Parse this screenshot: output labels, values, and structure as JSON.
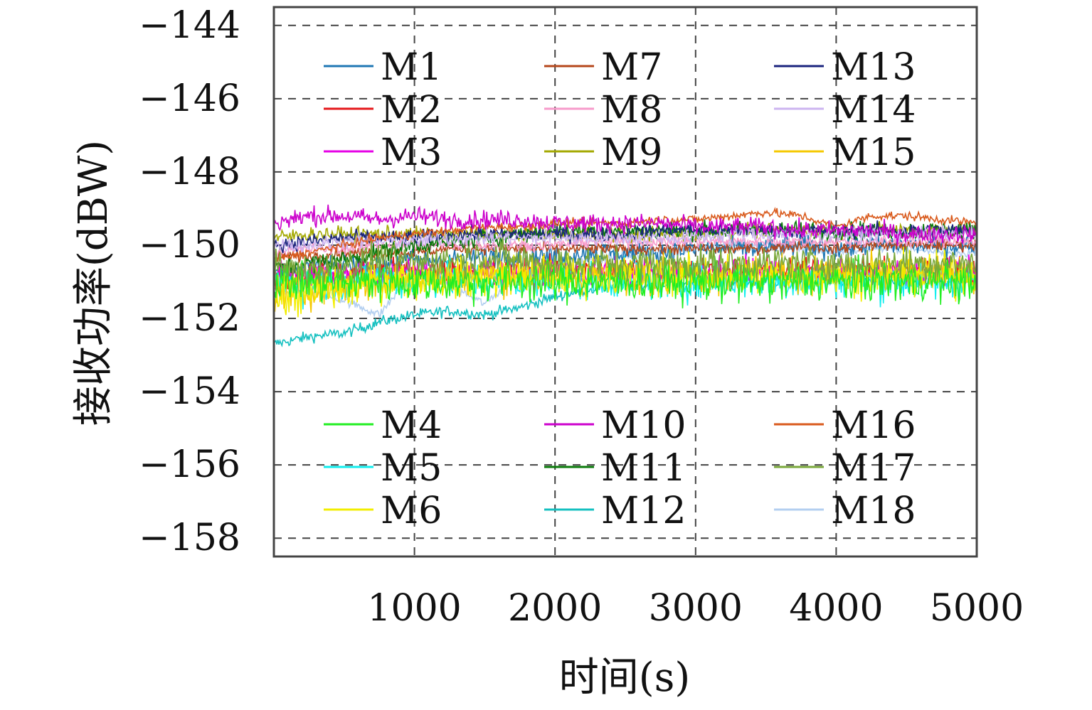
{
  "chart_data": {
    "type": "line",
    "title": "",
    "xlabel": "时间(s)",
    "ylabel": "接收功率(dBW)",
    "xlim": [
      0,
      5000
    ],
    "ylim": [
      -158.5,
      -143.5
    ],
    "xticks": [
      1000,
      2000,
      3000,
      4000,
      5000
    ],
    "yticks": [
      -144,
      -146,
      -148,
      -150,
      -152,
      -154,
      -156,
      -158
    ],
    "xtick_labels": [
      "1000",
      "2000",
      "3000",
      "4000",
      "5000"
    ],
    "ytick_labels": [
      "−144",
      "−146",
      "−148",
      "−150",
      "−152",
      "−154",
      "−156",
      "−158"
    ],
    "grid": true,
    "legend_placement": [
      "top",
      "bottom"
    ],
    "x": [
      0,
      250,
      500,
      750,
      1000,
      1250,
      1500,
      1750,
      2000,
      2250,
      2500,
      2750,
      3000,
      3250,
      3500,
      3750,
      4000,
      4250,
      4500,
      4750,
      5000
    ],
    "series": [
      {
        "name": "M1",
        "color": "#1f77b4",
        "values": [
          -150.8,
          -150.6,
          -150.5,
          -150.5,
          -150.4,
          -150.4,
          -150.3,
          -150.3,
          -150.3,
          -150.2,
          -150.2,
          -150.2,
          -150.1,
          -150.1,
          -150.1,
          -150.0,
          -150.1,
          -150.0,
          -150.0,
          -150.0,
          -150.0
        ]
      },
      {
        "name": "M2",
        "color": "#e41a1c",
        "values": [
          -150.9,
          -150.8,
          -150.8,
          -150.7,
          -150.7,
          -150.7,
          -150.7,
          -150.7,
          -150.7,
          -150.7,
          -150.7,
          -150.7,
          -150.7,
          -150.7,
          -150.7,
          -150.7,
          -150.7,
          -150.7,
          -150.7,
          -150.7,
          -150.7
        ]
      },
      {
        "name": "M3",
        "color": "#e600e6",
        "values": [
          -150.7,
          -150.8,
          -150.7,
          -150.8,
          -150.7,
          -150.8,
          -150.7,
          -150.8,
          -150.7,
          -150.8,
          -150.7,
          -150.8,
          -150.7,
          -150.8,
          -150.7,
          -150.8,
          -150.7,
          -150.8,
          -150.7,
          -150.8,
          -150.7
        ]
      },
      {
        "name": "M4",
        "color": "#22ee22",
        "values": [
          -151.0,
          -151.0,
          -151.0,
          -151.0,
          -151.0,
          -151.0,
          -151.0,
          -151.0,
          -151.0,
          -151.0,
          -151.0,
          -151.0,
          -151.0,
          -151.0,
          -151.0,
          -151.0,
          -151.0,
          -151.0,
          -151.0,
          -151.0,
          -151.0
        ]
      },
      {
        "name": "M5",
        "color": "#11eeee",
        "values": [
          -151.0,
          -151.1,
          -151.0,
          -150.9,
          -151.0,
          -150.9,
          -151.0,
          -151.0,
          -150.9,
          -151.0,
          -150.9,
          -151.0,
          -151.0,
          -150.9,
          -151.0,
          -151.0,
          -150.9,
          -151.0,
          -151.0,
          -151.0,
          -150.9
        ]
      },
      {
        "name": "M6",
        "color": "#f2ee00",
        "values": [
          -151.5,
          -151.3,
          -151.2,
          -151.0,
          -150.9,
          -150.9,
          -150.9,
          -150.8,
          -150.8,
          -150.8,
          -150.8,
          -150.8,
          -150.8,
          -150.8,
          -150.8,
          -150.8,
          -150.8,
          -150.8,
          -150.8,
          -150.8,
          -150.8
        ]
      },
      {
        "name": "M7",
        "color": "#b5471b",
        "values": [
          -150.3,
          -150.3,
          -150.2,
          -150.2,
          -150.2,
          -150.1,
          -150.1,
          -150.1,
          -150.1,
          -150.1,
          -150.1,
          -150.1,
          -150.1,
          -150.1,
          -150.1,
          -150.0,
          -150.1,
          -150.0,
          -150.0,
          -150.0,
          -150.0
        ]
      },
      {
        "name": "M8",
        "color": "#f79bcb",
        "values": [
          -150.2,
          -150.1,
          -150.1,
          -150.0,
          -150.0,
          -150.0,
          -150.0,
          -150.0,
          -150.0,
          -149.9,
          -149.9,
          -149.9,
          -149.9,
          -149.9,
          -149.9,
          -149.9,
          -149.9,
          -149.9,
          -149.9,
          -149.9,
          -149.9
        ]
      },
      {
        "name": "M9",
        "color": "#a3a800",
        "values": [
          -149.8,
          -149.7,
          -149.7,
          -149.7,
          -149.7,
          -149.7,
          -149.7,
          -149.7,
          -149.7,
          -149.7,
          -149.7,
          -149.7,
          -149.7,
          -149.6,
          -149.6,
          -149.6,
          -149.6,
          -149.6,
          -149.6,
          -149.6,
          -149.6
        ]
      },
      {
        "name": "M10",
        "color": "#cc00cc",
        "values": [
          -149.4,
          -149.2,
          -149.2,
          -149.3,
          -149.2,
          -149.3,
          -149.3,
          -149.3,
          -149.4,
          -149.4,
          -149.4,
          -149.4,
          -149.5,
          -149.5,
          -149.5,
          -149.6,
          -149.6,
          -149.6,
          -149.7,
          -149.7,
          -149.7
        ]
      },
      {
        "name": "M11",
        "color": "#0a7a0a",
        "values": [
          -150.6,
          -150.5,
          -150.4,
          -150.2,
          -150.0,
          -149.9,
          -149.8,
          -149.7,
          -149.6,
          -149.6,
          -149.6,
          -149.6,
          -149.6,
          -149.6,
          -149.6,
          -149.6,
          -149.6,
          -149.6,
          -149.6,
          -149.6,
          -149.6
        ]
      },
      {
        "name": "M12",
        "color": "#14c0c0",
        "values": [
          -152.7,
          -152.5,
          -152.4,
          -152.1,
          -151.9,
          -151.8,
          -151.9,
          -151.7,
          -151.4,
          -151.2,
          -151.1,
          -151.1,
          -151.0,
          -151.0,
          -151.0,
          -151.0,
          -151.0,
          -151.0,
          -151.0,
          -151.0,
          -151.0
        ]
      },
      {
        "name": "M13",
        "color": "#1a237e",
        "values": [
          -150.0,
          -149.9,
          -149.8,
          -149.8,
          -149.8,
          -149.7,
          -149.7,
          -149.7,
          -149.7,
          -149.7,
          -149.7,
          -149.6,
          -149.6,
          -149.6,
          -149.6,
          -149.6,
          -149.6,
          -149.6,
          -149.6,
          -149.6,
          -149.6
        ]
      },
      {
        "name": "M14",
        "color": "#cdb5f0",
        "values": [
          -150.0,
          -150.0,
          -149.9,
          -149.9,
          -149.9,
          -149.8,
          -149.8,
          -149.8,
          -149.8,
          -149.8,
          -149.8,
          -149.8,
          -149.8,
          -149.7,
          -149.7,
          -149.7,
          -149.7,
          -149.7,
          -149.7,
          -149.7,
          -149.7
        ]
      },
      {
        "name": "M15",
        "color": "#f5c800",
        "values": [
          -151.3,
          -151.2,
          -151.1,
          -151.0,
          -150.9,
          -150.9,
          -150.8,
          -150.8,
          -150.8,
          -150.8,
          -150.8,
          -150.8,
          -150.8,
          -150.8,
          -150.8,
          -150.8,
          -150.8,
          -150.8,
          -150.8,
          -150.8,
          -150.8
        ]
      },
      {
        "name": "M16",
        "color": "#d95a1c",
        "values": [
          -150.4,
          -150.2,
          -150.0,
          -149.8,
          -149.7,
          -149.6,
          -149.5,
          -149.5,
          -149.4,
          -149.4,
          -149.4,
          -149.3,
          -149.3,
          -149.2,
          -149.1,
          -149.2,
          -149.5,
          -149.2,
          -149.2,
          -149.3,
          -149.4
        ]
      },
      {
        "name": "M17",
        "color": "#7aa83a",
        "values": [
          -150.6,
          -150.7,
          -150.5,
          -150.4,
          -150.5,
          -150.4,
          -150.3,
          -150.4,
          -150.5,
          -150.5,
          -150.5,
          -150.5,
          -150.5,
          -150.5,
          -150.5,
          -150.5,
          -150.5,
          -150.5,
          -150.5,
          -150.5,
          -150.5
        ]
      },
      {
        "name": "M18",
        "color": "#b3cff0",
        "values": [
          -151.2,
          -151.3,
          -151.5,
          -151.9,
          -150.7,
          -151.1,
          -151.6,
          -150.8,
          -150.6,
          -150.4,
          -150.3,
          -150.2,
          -150.1,
          -150.0,
          -150.0,
          -150.1,
          -150.2,
          -150.1,
          -150.1,
          -150.2,
          -150.2
        ]
      }
    ],
    "legend_groups": [
      [
        "M1",
        "M7",
        "M13",
        "M2",
        "M8",
        "M14",
        "M3",
        "M9",
        "M15"
      ],
      [
        "M4",
        "M10",
        "M16",
        "M5",
        "M11",
        "M17",
        "M6",
        "M12",
        "M18"
      ]
    ]
  }
}
